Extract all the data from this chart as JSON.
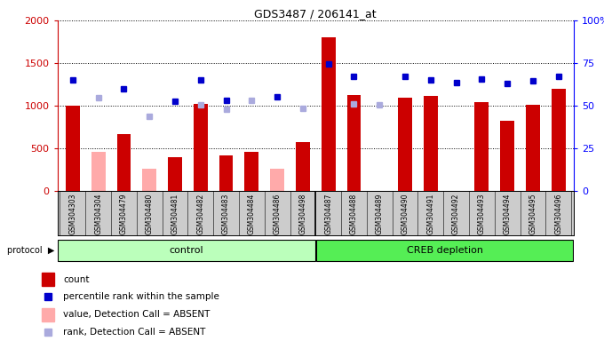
{
  "title": "GDS3487 / 206141_at",
  "samples": [
    "GSM304303",
    "GSM304304",
    "GSM304479",
    "GSM304480",
    "GSM304481",
    "GSM304482",
    "GSM304483",
    "GSM304484",
    "GSM304486",
    "GSM304498",
    "GSM304487",
    "GSM304488",
    "GSM304489",
    "GSM304490",
    "GSM304491",
    "GSM304492",
    "GSM304493",
    "GSM304494",
    "GSM304495",
    "GSM304496"
  ],
  "count": [
    1000,
    null,
    670,
    null,
    400,
    1020,
    420,
    460,
    null,
    570,
    1800,
    1130,
    null,
    1090,
    1110,
    null,
    1040,
    820,
    1010,
    1200
  ],
  "percentile_rank": [
    1300,
    null,
    1200,
    null,
    1050,
    1300,
    1060,
    null,
    1100,
    null,
    1490,
    1340,
    null,
    1340,
    1300,
    1270,
    1310,
    1260,
    1290,
    1340
  ],
  "value_absent": [
    null,
    460,
    null,
    260,
    null,
    null,
    null,
    440,
    260,
    null,
    null,
    null,
    null,
    null,
    null,
    null,
    null,
    null,
    null,
    null
  ],
  "rank_absent": [
    null,
    1090,
    null,
    880,
    null,
    1010,
    960,
    1060,
    null,
    970,
    null,
    1020,
    1010,
    null,
    null,
    null,
    null,
    null,
    null,
    null
  ],
  "n_control": 10,
  "n_creb": 10,
  "ylim_left": [
    0,
    2000
  ],
  "ylim_right": [
    0,
    100
  ],
  "yticks_left": [
    0,
    500,
    1000,
    1500,
    2000
  ],
  "yticks_right": [
    0,
    25,
    50,
    75,
    100
  ],
  "ytick_labels_right": [
    "0",
    "25",
    "50",
    "75",
    "100%"
  ],
  "bar_color_red": "#cc0000",
  "bar_color_pink": "#ffaaaa",
  "dot_color_blue": "#0000cc",
  "dot_color_lightblue": "#aaaadd",
  "control_color": "#bbffbb",
  "creb_color": "#55ee55",
  "xtick_bg": "#cccccc",
  "plot_bg": "#ffffff",
  "legend_items": [
    "count",
    "percentile rank within the sample",
    "value, Detection Call = ABSENT",
    "rank, Detection Call = ABSENT"
  ]
}
